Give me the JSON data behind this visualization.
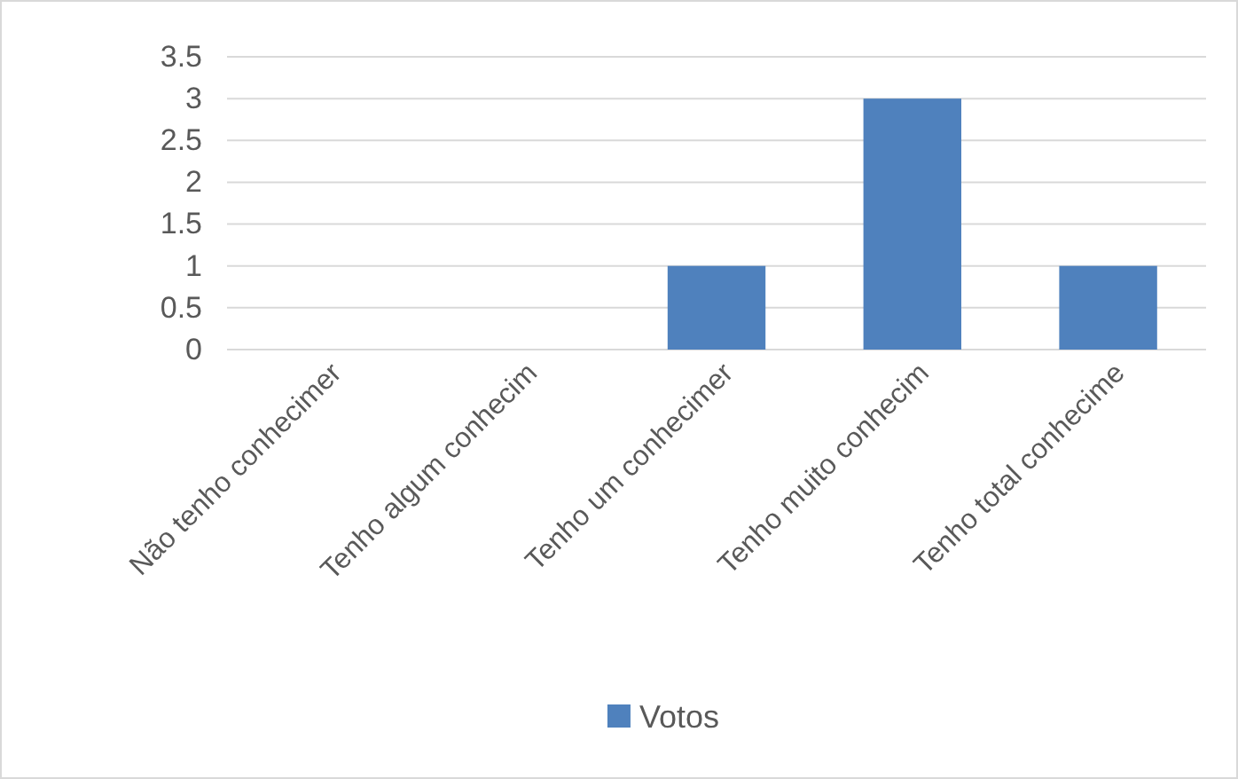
{
  "chart_data": {
    "type": "bar",
    "categories": [
      "Não tenho conhecimer",
      "Tenho algum conhecim",
      "Tenho um conhecimer",
      "Tenho muito conhecim",
      "Tenho total conhecime"
    ],
    "series": [
      {
        "name": "Votos",
        "color": "#4f81bd",
        "values": [
          0,
          0,
          1,
          3,
          1
        ]
      }
    ],
    "ylim": [
      0,
      3.5
    ],
    "yticks": [
      0,
      0.5,
      1,
      1.5,
      2,
      2.5,
      3,
      3.5
    ],
    "grid": "y",
    "legend": "bottom"
  }
}
